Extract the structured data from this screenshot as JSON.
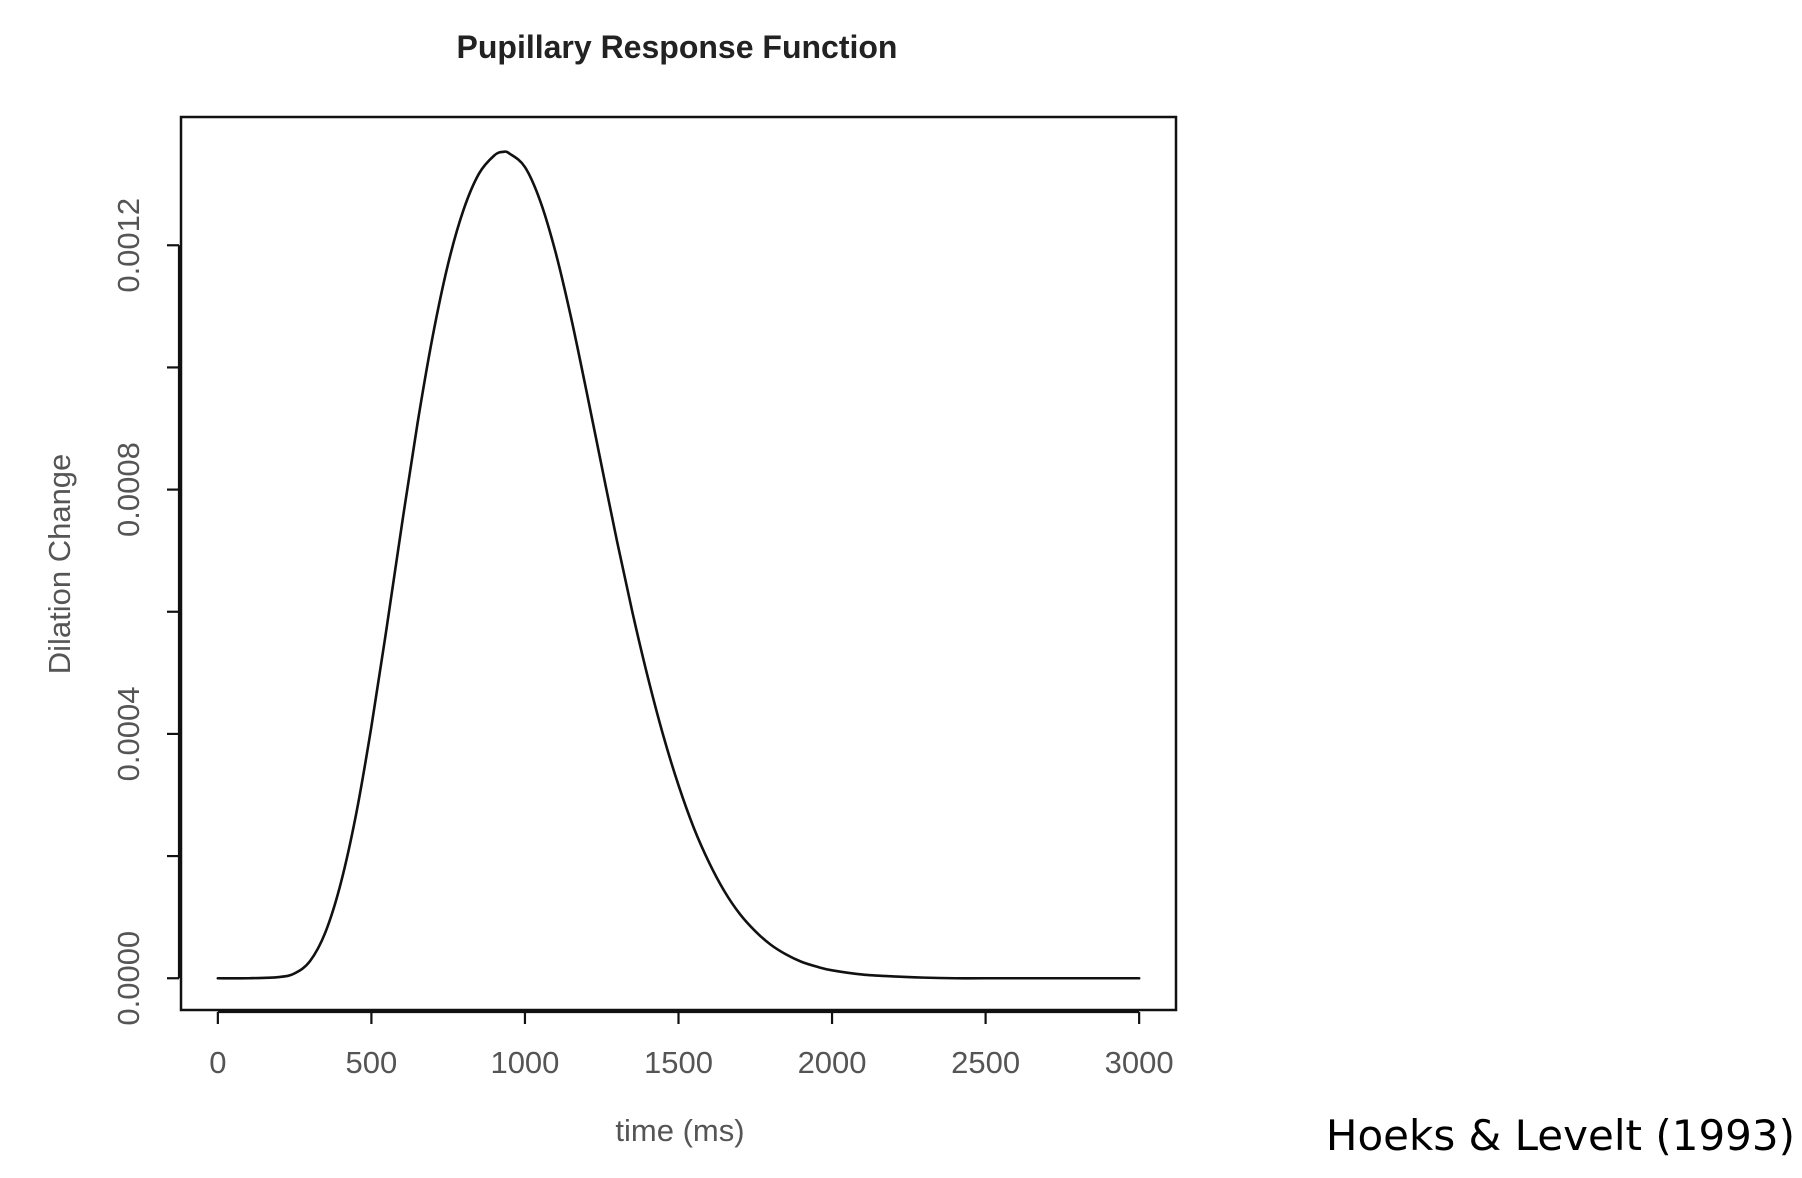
{
  "chart_data": {
    "type": "line",
    "title": "Pupillary Response Function",
    "xlabel": "time (ms)",
    "ylabel": "Dilation Change",
    "xlim": [
      -120,
      3120
    ],
    "ylim": [
      -5.2e-05,
      0.00141
    ],
    "x_ticks": [
      0,
      500,
      1000,
      1500,
      2000,
      2500,
      3000
    ],
    "x_tick_labels": [
      "0",
      "500",
      "1000",
      "1500",
      "2000",
      "2500",
      "3000"
    ],
    "y_ticks": [
      0,
      0.0002,
      0.0004,
      0.0006,
      0.0008,
      0.001,
      0.0012
    ],
    "y_tick_labels": [
      "0.0000",
      "",
      "0.0004",
      "",
      "0.0008",
      "",
      "0.0012"
    ],
    "grid": false,
    "legend": "none",
    "line_color": "#111111",
    "series": [
      {
        "x": [
          0,
          100,
          200,
          250,
          300,
          350,
          400,
          450,
          500,
          550,
          600,
          650,
          700,
          750,
          800,
          850,
          900,
          930,
          950,
          1000,
          1050,
          1100,
          1150,
          1200,
          1250,
          1300,
          1350,
          1400,
          1450,
          1500,
          1550,
          1600,
          1650,
          1700,
          1750,
          1800,
          1850,
          1900,
          1950,
          2000,
          2100,
          2200,
          2300,
          2400,
          2500,
          2750,
          3000
        ],
        "y": [
          0,
          0,
          2e-06,
          8e-06,
          2.8e-05,
          7.5e-05,
          0.000155,
          0.000268,
          0.000412,
          0.000575,
          0.000745,
          0.000908,
          0.001052,
          0.00117,
          0.001258,
          0.001317,
          0.001347,
          0.001353,
          0.00135,
          0.001328,
          0.001272,
          0.001188,
          0.001082,
          0.000962,
          0.000838,
          0.000715,
          0.000599,
          0.000493,
          0.000398,
          0.000316,
          0.000246,
          0.000189,
          0.000142,
          0.000105,
          7.7e-05,
          5.5e-05,
          3.9e-05,
          2.7e-05,
          1.9e-05,
          1.3e-05,
          6e-06,
          3e-06,
          1e-06,
          0,
          0,
          0,
          0
        ]
      }
    ]
  },
  "annotation": {
    "citation": "Hoeks & Levelt (1993)"
  }
}
